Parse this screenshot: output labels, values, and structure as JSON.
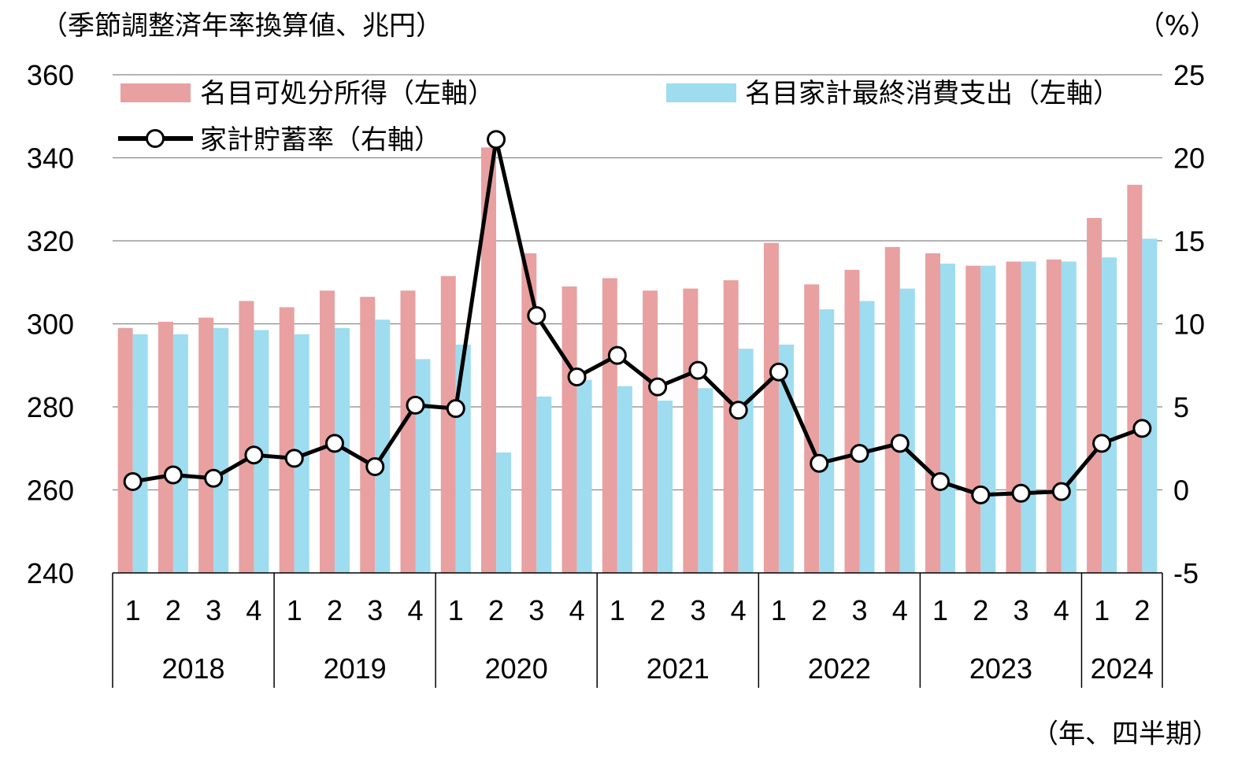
{
  "chart_data": {
    "type": "bar+line",
    "unit_left": "（季節調整済年率換算値、兆円）",
    "unit_right": "（%）",
    "x_unit": "（年、四半期）",
    "years": [
      "2018",
      "2019",
      "2020",
      "2021",
      "2022",
      "2023",
      "2024"
    ],
    "quarters_per_year": [
      4,
      4,
      4,
      4,
      4,
      4,
      2
    ],
    "quarter_labels": [
      "1",
      "2",
      "3",
      "4",
      "1",
      "2",
      "3",
      "4",
      "1",
      "2",
      "3",
      "4",
      "1",
      "2",
      "3",
      "4",
      "1",
      "2",
      "3",
      "4",
      "1",
      "2",
      "3",
      "4",
      "1",
      "2"
    ],
    "y_left": {
      "min": 240,
      "max": 360,
      "ticks": [
        "240",
        "260",
        "280",
        "300",
        "320",
        "340",
        "360"
      ]
    },
    "y_right": {
      "min": -5,
      "max": 25,
      "ticks": [
        "-5",
        "0",
        "5",
        "10",
        "15",
        "20",
        "25"
      ]
    },
    "legend": [
      "名目可処分所得（左軸）",
      "名目家計最終消費支出（左軸）",
      "家計貯蓄率（右軸）"
    ],
    "colors": {
      "income": "#e8a0a1",
      "consumption": "#9edcf0",
      "savings": "#000000",
      "grid": "#888888"
    },
    "series": [
      {
        "name": "名目可処分所得（左軸）",
        "axis": "left",
        "type": "bar",
        "values": [
          299,
          300.5,
          301.5,
          305.5,
          304,
          308,
          306.5,
          308,
          311.5,
          342.5,
          317,
          309,
          311,
          308,
          308.5,
          310.5,
          319.5,
          309.5,
          313,
          318.5,
          317,
          314,
          315,
          315.5,
          325.5,
          333.5
        ]
      },
      {
        "name": "名目家計最終消費支出（左軸）",
        "axis": "left",
        "type": "bar",
        "values": [
          297.5,
          297.5,
          299,
          298.5,
          297.5,
          299,
          301,
          291.5,
          295,
          269,
          282.5,
          286.5,
          285,
          281.5,
          284.5,
          294,
          295,
          303.5,
          305.5,
          308.5,
          314.5,
          314,
          315,
          315,
          316,
          320.5
        ]
      },
      {
        "name": "家計貯蓄率（右軸）",
        "axis": "right",
        "type": "line",
        "values": [
          0.5,
          0.9,
          0.7,
          2.1,
          1.9,
          2.8,
          1.4,
          5.1,
          4.9,
          21.1,
          10.5,
          6.8,
          8.1,
          6.2,
          7.2,
          4.8,
          7.1,
          1.6,
          2.2,
          2.8,
          0.5,
          -0.3,
          -0.2,
          -0.1,
          2.8,
          3.7
        ]
      }
    ]
  }
}
